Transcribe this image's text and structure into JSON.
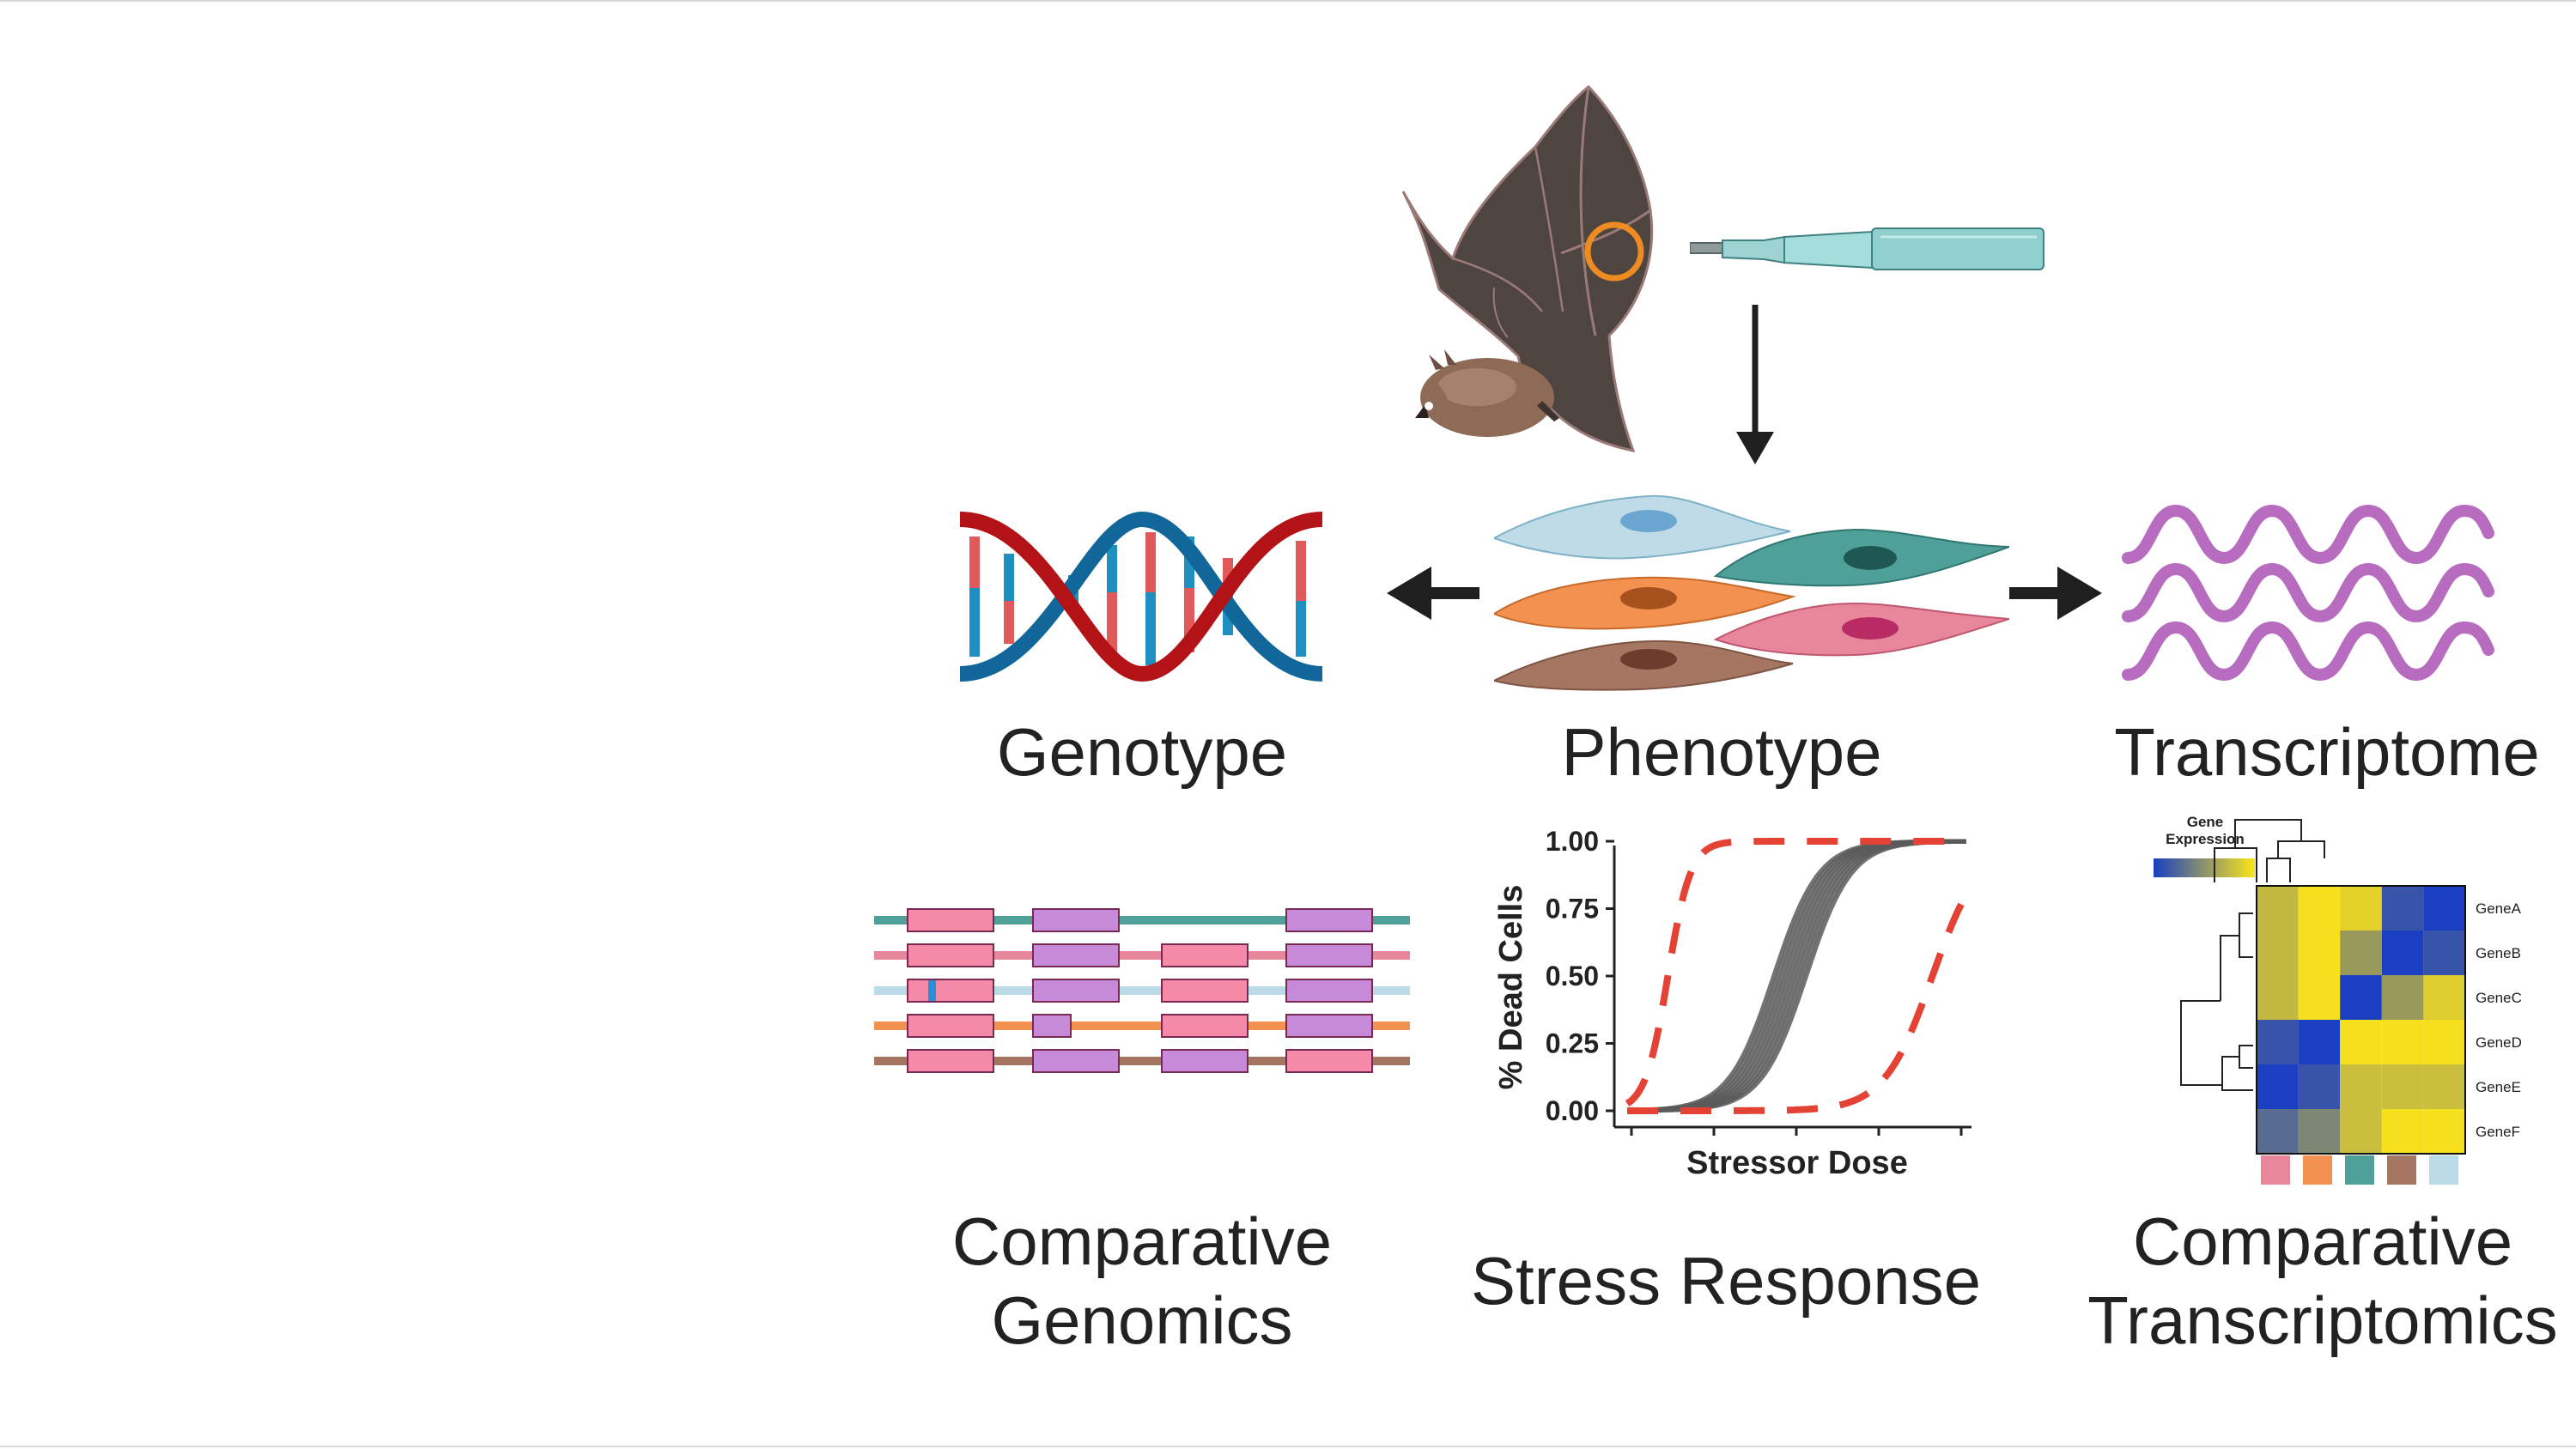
{
  "labels": {
    "genotype": "Genotype",
    "phenotype": "Phenotype",
    "transcriptome": "Transcriptome",
    "comparative_genomics_line1": "Comparative",
    "comparative_genomics_line2": "Genomics",
    "stress_response": "Stress Response",
    "comparative_transcriptomics_line1": "Comparative",
    "comparative_transcriptomics_line2": "Transcriptomics"
  },
  "colors": {
    "dna_red": "#b31217",
    "dna_blue": "#11679a",
    "rna": "#b76cc0",
    "arrow": "#1f1f1f",
    "highlight_circle": "#ee8c22",
    "gene_pink": "#f48aa7",
    "gene_purple": "#c78ad8",
    "sample_colors": [
      "#e8879b",
      "#f29150",
      "#4ea099",
      "#a57661",
      "#bcdbe8"
    ],
    "curve_gray": "#5a5a5a",
    "curve_red": "#e34234",
    "heat_blue": "#1a3fc2",
    "heat_yellow": "#fce51a"
  },
  "icons": [
    "bat-icon",
    "pipette-icon",
    "dna-helix-icon",
    "cell-icon",
    "rna-wave-icon"
  ],
  "stress_chart": {
    "chart_data": {
      "type": "line",
      "ylabel": "% Dead Cells",
      "xlabel": "Stressor Dose",
      "ylim": [
        0,
        1
      ],
      "yticks": [
        "0.00",
        "0.25",
        "0.50",
        "0.75",
        "1.00"
      ],
      "series": [
        {
          "style": "solid-band",
          "color": "#5a5a5a",
          "midpoint_fraction": 0.48,
          "steepness": 15
        },
        {
          "style": "dashed",
          "color": "#e34234",
          "midpoint_fraction": 0.12,
          "steepness": 30
        },
        {
          "style": "dashed",
          "color": "#e34234",
          "midpoint_fraction": 0.9,
          "steepness": 14
        }
      ]
    }
  },
  "heatmap": {
    "chart_data": {
      "type": "heatmap",
      "legend_title_line1": "Gene",
      "legend_title_line2": "Expression",
      "rows": [
        "GeneA",
        "GeneB",
        "GeneC",
        "GeneD",
        "GeneE",
        "GeneF"
      ],
      "values": [
        [
          0.72,
          0.97,
          0.88,
          0.12,
          0.0
        ],
        [
          0.72,
          0.97,
          0.52,
          0.0,
          0.12
        ],
        [
          0.72,
          0.97,
          0.0,
          0.52,
          0.85
        ],
        [
          0.12,
          0.0,
          0.97,
          0.97,
          0.97
        ],
        [
          0.0,
          0.12,
          0.75,
          0.75,
          0.75
        ],
        [
          0.25,
          0.4,
          0.75,
          0.97,
          0.97
        ]
      ]
    }
  }
}
